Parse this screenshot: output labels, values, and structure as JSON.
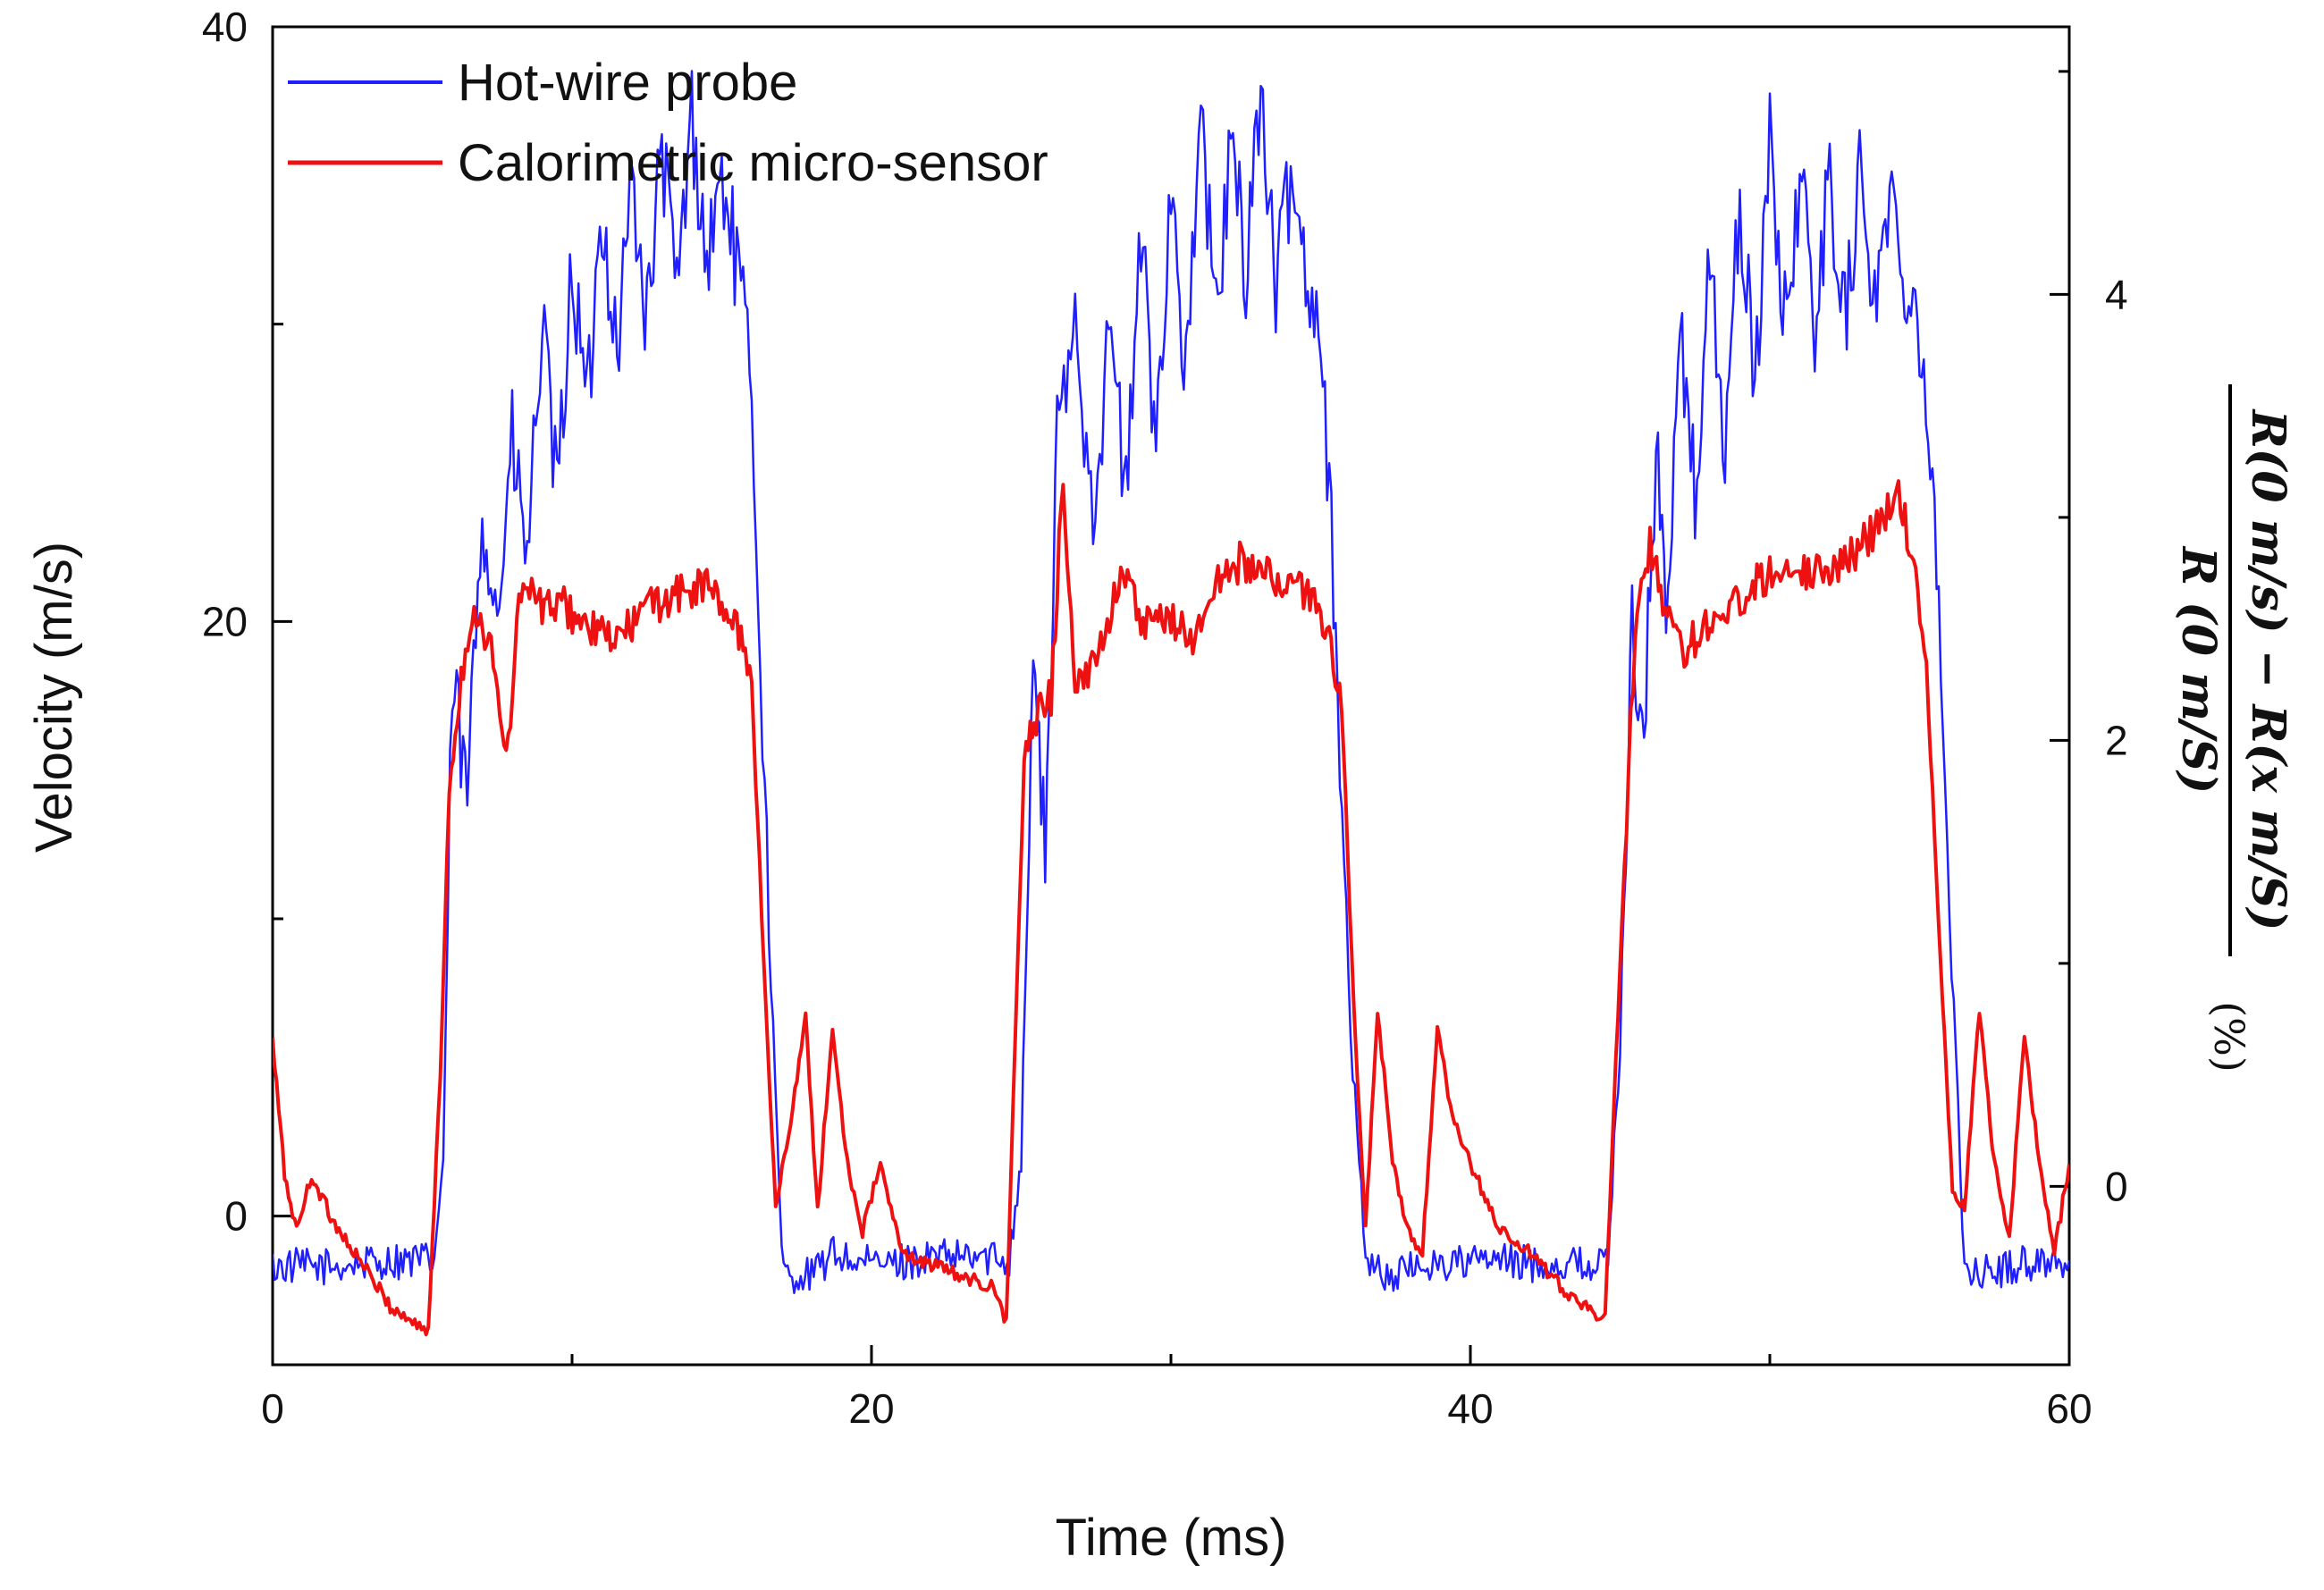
{
  "chart_data": {
    "type": "line",
    "title": "",
    "xlabel": "Time (ms)",
    "ylabel": "Velocity (m/s)",
    "y2label": {
      "numerator": "R(0 m/s) − R(x m/S)",
      "denominator": "R (0 m/S)",
      "suffix": "(%)"
    },
    "xlim": [
      0,
      60
    ],
    "ylim": [
      -5,
      40
    ],
    "y2lim": [
      -0.8,
      5.2
    ],
    "x_ticks": [
      "0",
      "20",
      "40",
      "60"
    ],
    "y_ticks": [
      "0",
      "20",
      "40"
    ],
    "y2_ticks": [
      "0",
      "2",
      "4"
    ],
    "legend": {
      "placement": "top-left",
      "entries": [
        {
          "name": "Hot-wire probe",
          "color": "#1f1fff"
        },
        {
          "name": "Calorimetric micro-sensor",
          "color": "#ee1111"
        }
      ]
    },
    "series": [
      {
        "name": "Hot-wire probe",
        "axis": "left",
        "color": "#1f1fff",
        "x": [
          0,
          2,
          4,
          5.4,
          5.7,
          6.0,
          6.5,
          7.0,
          7.5,
          8.0,
          8.5,
          9.0,
          9.5,
          10.0,
          10.5,
          11.0,
          11.5,
          12.0,
          12.5,
          13.0,
          13.5,
          14.0,
          14.5,
          15.0,
          15.5,
          16.0,
          16.5,
          17.0,
          17.2,
          18.0,
          18.8,
          19.5,
          20.5,
          22,
          24.6,
          25.0,
          25.4,
          25.8,
          26.2,
          26.8,
          27.4,
          28.0,
          28.5,
          29.0,
          29.5,
          30.0,
          30.5,
          31.0,
          31.5,
          32.0,
          32.5,
          33.0,
          33.5,
          34.0,
          34.5,
          35.0,
          35.5,
          36.0,
          36.5,
          37.0,
          37.5,
          38.5,
          39.2,
          40.5,
          42,
          44.6,
          45.0,
          45.4,
          45.8,
          46.2,
          46.6,
          47.0,
          47.5,
          48.0,
          48.5,
          49.0,
          49.5,
          50.0,
          50.5,
          51.0,
          51.5,
          52.0,
          52.5,
          53.0,
          53.5,
          54.0,
          54.5,
          55.0,
          55.5,
          56.0,
          56.5,
          56.8,
          57.3,
          57.8,
          58.3,
          59.0,
          60.0
        ],
        "values": [
          -1.7,
          -1.7,
          -1.5,
          -1.5,
          2,
          18,
          14,
          24,
          20,
          26,
          22,
          30,
          24,
          32,
          27,
          34,
          29,
          35,
          30,
          36,
          31,
          37,
          32,
          35,
          32,
          28,
          12,
          -1.5,
          -2.0,
          -2.0,
          -1.2,
          -1.6,
          -1.6,
          -1.4,
          -1.4,
          2,
          19,
          12,
          26,
          30,
          24,
          30,
          24,
          33,
          26,
          35,
          28,
          37,
          30,
          36,
          32,
          38,
          31,
          35,
          32,
          30,
          20,
          6,
          -1.2,
          -2.0,
          -2.0,
          -1.6,
          -1.6,
          -1.5,
          -1.6,
          -1.6,
          6,
          20,
          16,
          26,
          20,
          30,
          24,
          32,
          26,
          34,
          28,
          36,
          30,
          35,
          30,
          35,
          30,
          35,
          31,
          34,
          32,
          30,
          24,
          10,
          -1.5,
          -1.9,
          -1.9,
          -1.8,
          -1.6,
          -1.5,
          -1.5
        ]
      },
      {
        "name": "Calorimetric micro-sensor",
        "axis": "right",
        "color": "#ee1111",
        "x": [
          0,
          0.4,
          0.8,
          1.3,
          2.0,
          3.0,
          4.0,
          4.6,
          5.2,
          5.6,
          5.9,
          6.3,
          6.8,
          7.3,
          7.8,
          8.3,
          9.0,
          9.8,
          10.5,
          11.5,
          12.5,
          13.5,
          14.5,
          15.5,
          16.0,
          16.4,
          16.8,
          17.3,
          17.8,
          18.2,
          18.7,
          19.2,
          19.7,
          20.3,
          21.0,
          22.0,
          23.0,
          24.0,
          24.5,
          25.1,
          25.5,
          26.0,
          26.4,
          26.8,
          27.3,
          27.8,
          28.4,
          29.0,
          30.0,
          30.8,
          31.5,
          32.3,
          33.0,
          34.0,
          35.0,
          35.7,
          36.1,
          36.5,
          36.9,
          37.4,
          37.9,
          38.4,
          38.9,
          39.4,
          40.0,
          41.0,
          42.0,
          43.0,
          44.0,
          44.5,
          45.0,
          45.5,
          46.0,
          46.5,
          47.0,
          47.5,
          48.0,
          48.8,
          49.5,
          50.5,
          51.5,
          52.5,
          53.5,
          54.3,
          54.8,
          55.3,
          55.7,
          56.1,
          56.5,
          57.0,
          57.5,
          58.0,
          58.5,
          59.0,
          59.5,
          60.0
        ],
        "values": [
          0.65,
          0.05,
          -0.2,
          0.05,
          -0.15,
          -0.35,
          -0.55,
          -0.6,
          -0.65,
          0.5,
          1.8,
          2.3,
          2.6,
          2.4,
          1.9,
          2.7,
          2.6,
          2.6,
          2.5,
          2.45,
          2.6,
          2.65,
          2.7,
          2.5,
          2.3,
          1.0,
          -0.1,
          0.3,
          0.75,
          -0.1,
          0.7,
          0.1,
          -0.2,
          0.1,
          -0.3,
          -0.35,
          -0.4,
          -0.45,
          -0.6,
          1.9,
          2.1,
          2.2,
          3.2,
          2.2,
          2.3,
          2.5,
          2.8,
          2.5,
          2.55,
          2.45,
          2.7,
          2.8,
          2.75,
          2.7,
          2.6,
          2.2,
          0.8,
          -0.2,
          0.8,
          0.1,
          -0.2,
          -0.3,
          0.7,
          0.3,
          0.1,
          -0.2,
          -0.3,
          -0.45,
          -0.55,
          -0.6,
          1.0,
          2.5,
          2.9,
          2.6,
          2.4,
          2.45,
          2.55,
          2.6,
          2.7,
          2.8,
          2.75,
          2.8,
          2.95,
          3.1,
          2.8,
          2.2,
          1.0,
          0.0,
          -0.1,
          0.8,
          0.1,
          -0.25,
          0.7,
          0.1,
          -0.3,
          0.1
        ]
      }
    ]
  }
}
